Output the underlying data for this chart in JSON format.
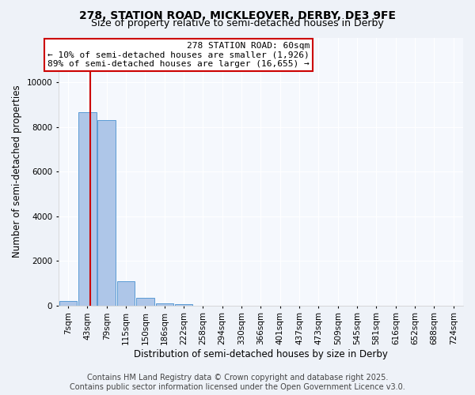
{
  "title_line1": "278, STATION ROAD, MICKLEOVER, DERBY, DE3 9FE",
  "title_line2": "Size of property relative to semi-detached houses in Derby",
  "xlabel": "Distribution of semi-detached houses by size in Derby",
  "ylabel": "Number of semi-detached properties",
  "categories": [
    "7sqm",
    "43sqm",
    "79sqm",
    "115sqm",
    "150sqm",
    "186sqm",
    "222sqm",
    "258sqm",
    "294sqm",
    "330sqm",
    "366sqm",
    "401sqm",
    "437sqm",
    "473sqm",
    "509sqm",
    "545sqm",
    "581sqm",
    "616sqm",
    "652sqm",
    "688sqm",
    "724sqm"
  ],
  "values": [
    200,
    8650,
    8300,
    1100,
    350,
    100,
    60,
    0,
    0,
    0,
    0,
    0,
    0,
    0,
    0,
    0,
    0,
    0,
    0,
    0,
    0
  ],
  "bar_color": "#aec6e8",
  "bar_edge_color": "#5b9bd5",
  "vline_color": "#cc0000",
  "vline_x": 1.15,
  "annotation_text": "278 STATION ROAD: 60sqm\n← 10% of semi-detached houses are smaller (1,926)\n89% of semi-detached houses are larger (16,655) →",
  "annotation_box_color": "#cc0000",
  "footer_line1": "Contains HM Land Registry data © Crown copyright and database right 2025.",
  "footer_line2": "Contains public sector information licensed under the Open Government Licence v3.0.",
  "ylim": [
    0,
    12000
  ],
  "yticks": [
    0,
    2000,
    4000,
    6000,
    8000,
    10000
  ],
  "bg_color": "#eef2f8",
  "plot_bg_color": "#f5f8fd",
  "grid_color": "#ffffff",
  "title_fontsize": 10,
  "subtitle_fontsize": 9,
  "axis_label_fontsize": 8.5,
  "tick_fontsize": 7.5,
  "footer_fontsize": 7,
  "annotation_fontsize": 8
}
